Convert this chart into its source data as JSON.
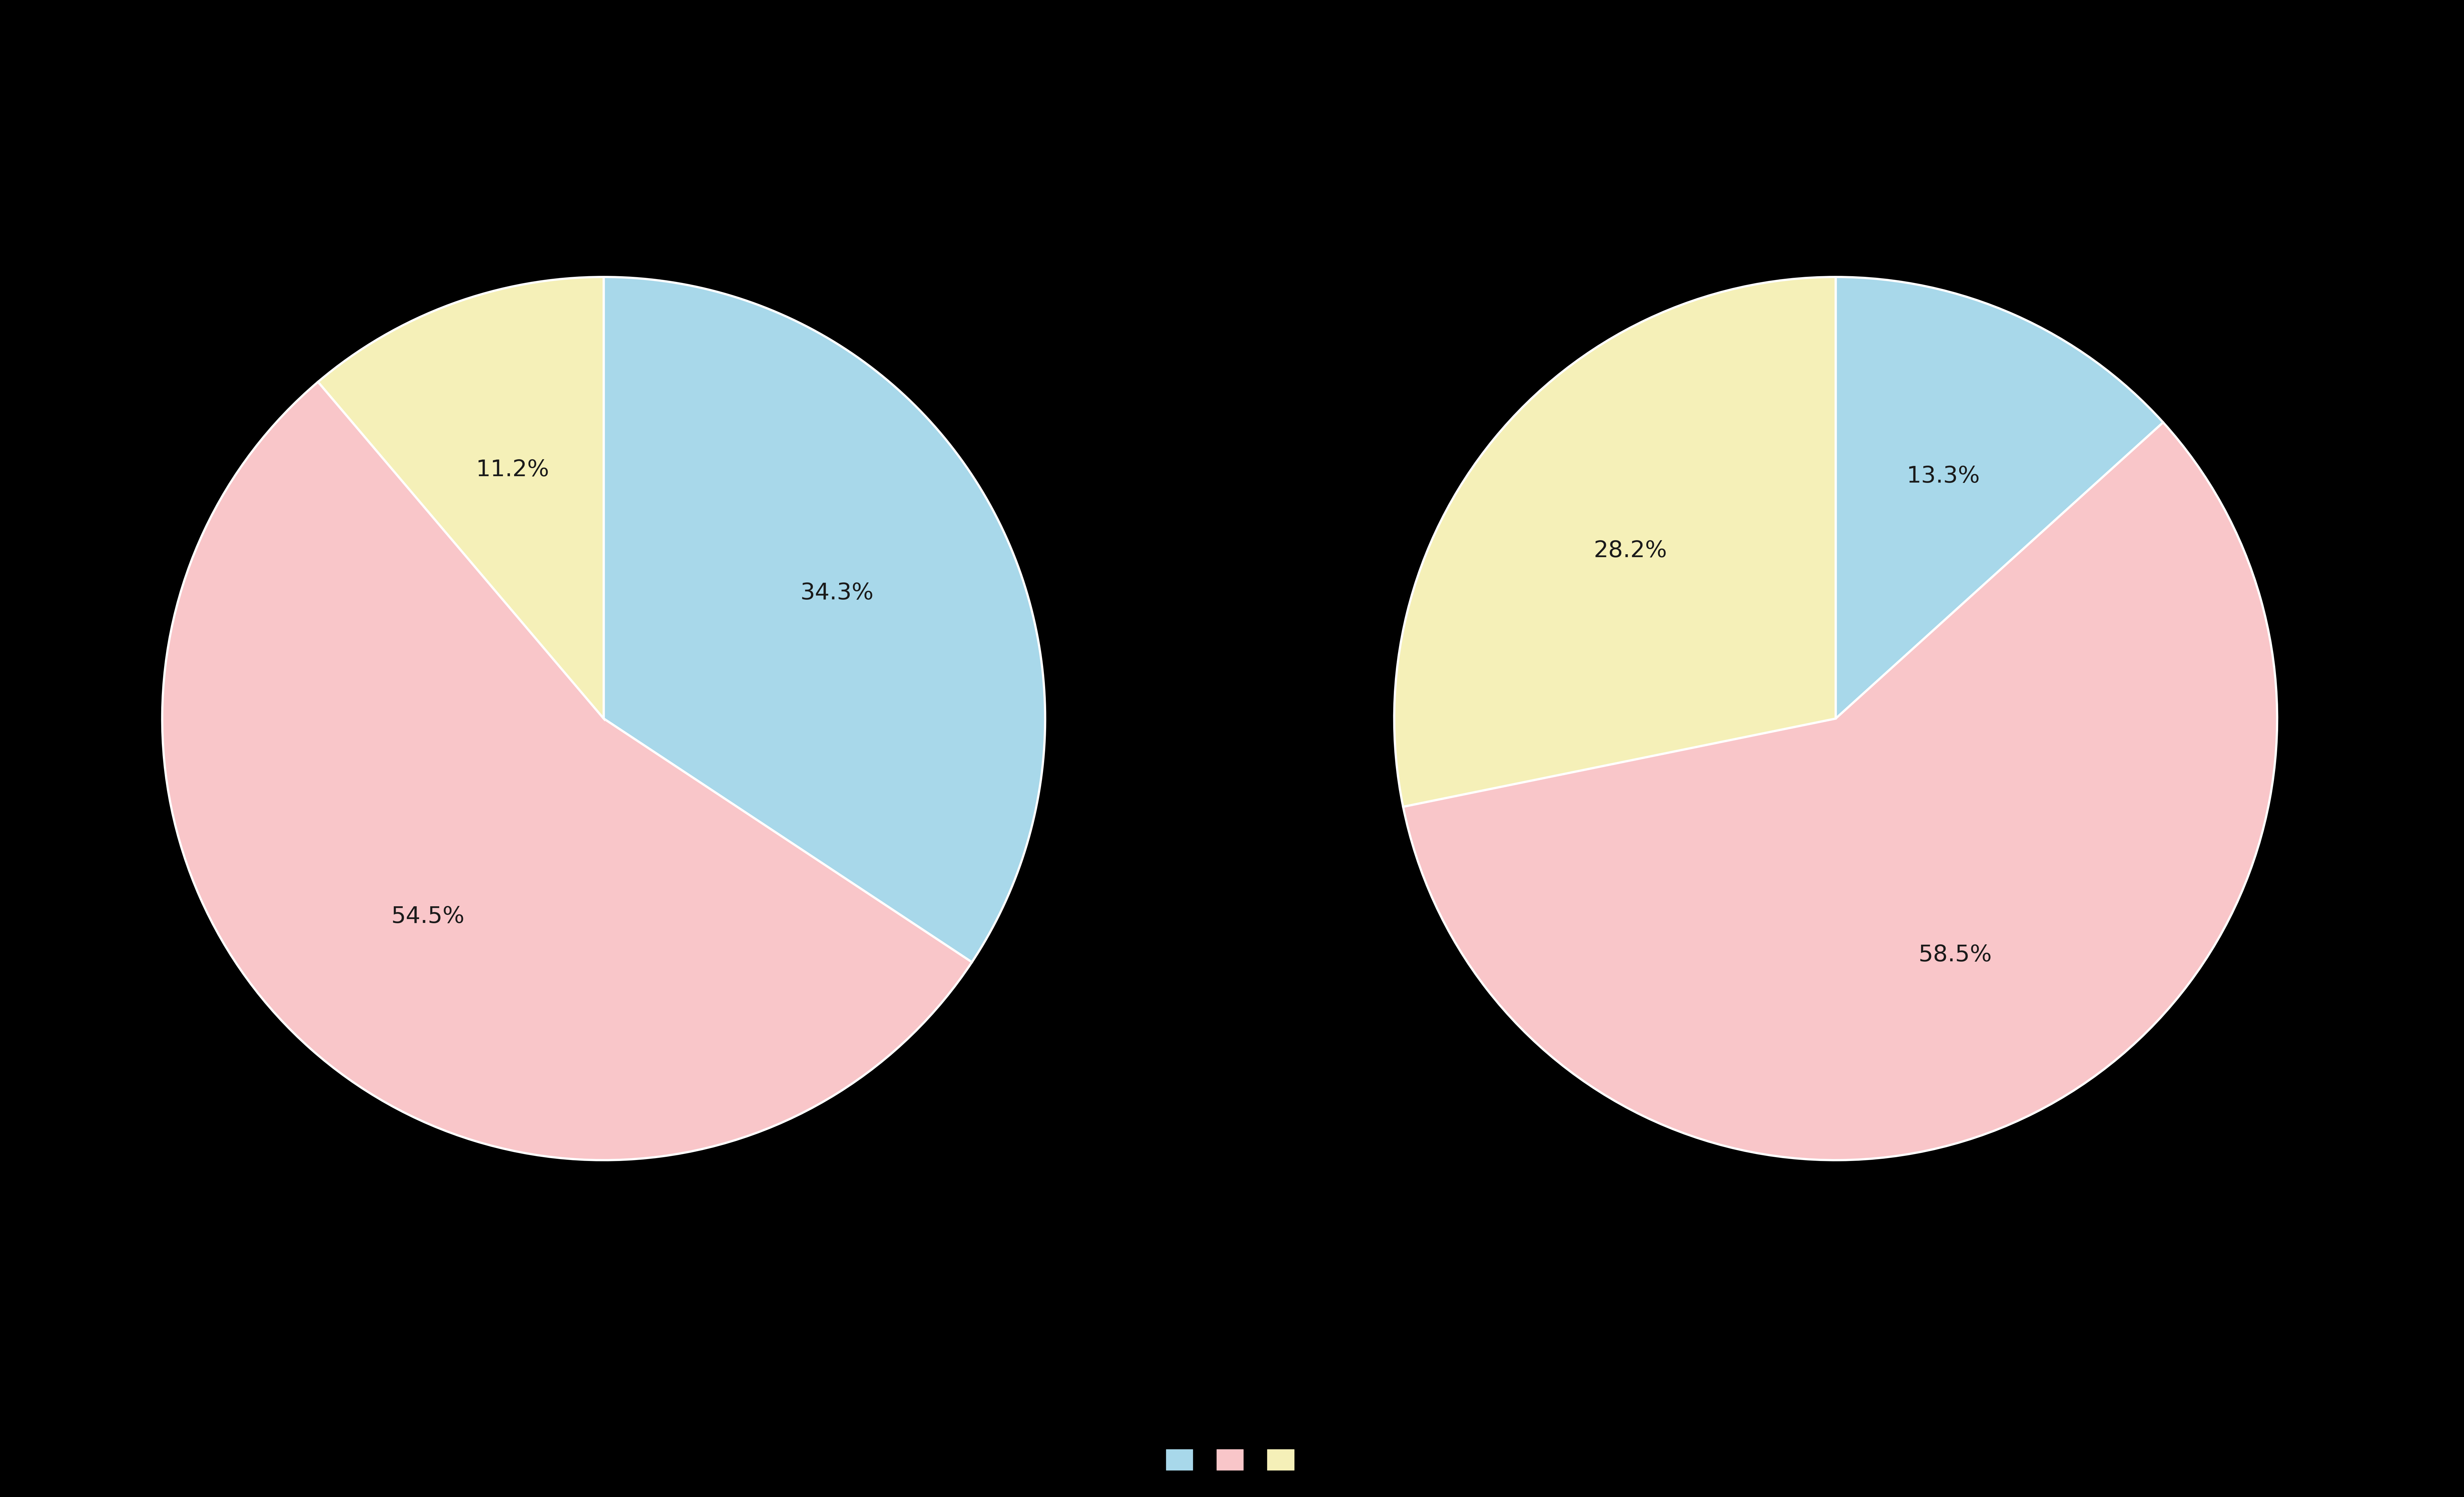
{
  "background_color": "#000000",
  "pie1": {
    "values": [
      34.3,
      54.5,
      11.2
    ],
    "colors": [
      "#a8d8ea",
      "#f9c6c9",
      "#f5f0b8"
    ],
    "labels": [
      "34.3%",
      "54.5%",
      "11.2%"
    ],
    "startangle": 90
  },
  "pie2": {
    "values": [
      13.3,
      58.5,
      28.2
    ],
    "colors": [
      "#a8d8ea",
      "#f9c6c9",
      "#f5f0b8"
    ],
    "labels": [
      "13.3%",
      "58.5%",
      "28.2%"
    ],
    "startangle": 90
  },
  "legend_colors": [
    "#a8d8ea",
    "#f9c6c9",
    "#f5f0b8"
  ],
  "legend_labels": [
    "",
    "",
    ""
  ],
  "text_color": "#1a1a1a",
  "label_fontsize": 52,
  "figsize": [
    77.02,
    46.78
  ],
  "dpi": 100,
  "edge_color": "#ffffff",
  "edge_linewidth": 5
}
